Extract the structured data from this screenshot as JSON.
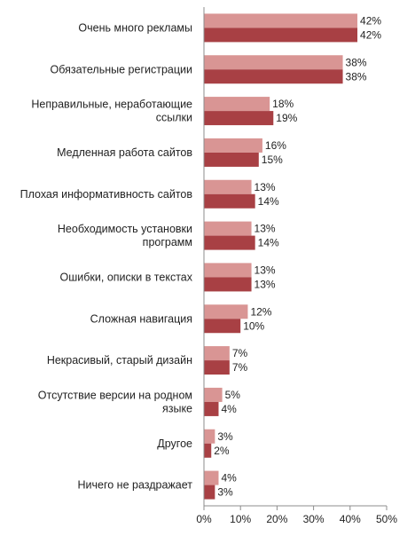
{
  "chart_data": {
    "type": "bar",
    "orientation": "horizontal",
    "categories": [
      [
        "Очень много рекламы"
      ],
      [
        "Обязательные регистрации"
      ],
      [
        "Неправильные, неработающие",
        "ссылки"
      ],
      [
        "Медленная работа сайтов"
      ],
      [
        "Плохая информативность сайтов"
      ],
      [
        "Необходимость установки",
        "программ"
      ],
      [
        "Ошибки, описки в текстах"
      ],
      [
        "Сложная навигация"
      ],
      [
        "Некрасивый, старый дизайн"
      ],
      [
        "Отсутствие версии на родном",
        "языке"
      ],
      [
        "Другое"
      ],
      [
        "Ничего не раздражает"
      ]
    ],
    "series": [
      {
        "color": "#d99594",
        "values": [
          42,
          38,
          18,
          16,
          13,
          13,
          13,
          12,
          7,
          5,
          3,
          4
        ]
      },
      {
        "color": "#a84044",
        "values": [
          42,
          38,
          19,
          15,
          14,
          14,
          13,
          10,
          7,
          4,
          2,
          3
        ]
      }
    ],
    "xlim": [
      0,
      50
    ],
    "xticks": [
      0,
      10,
      20,
      30,
      40,
      50
    ],
    "value_suffix": "%",
    "grid": false,
    "legend": "none"
  }
}
